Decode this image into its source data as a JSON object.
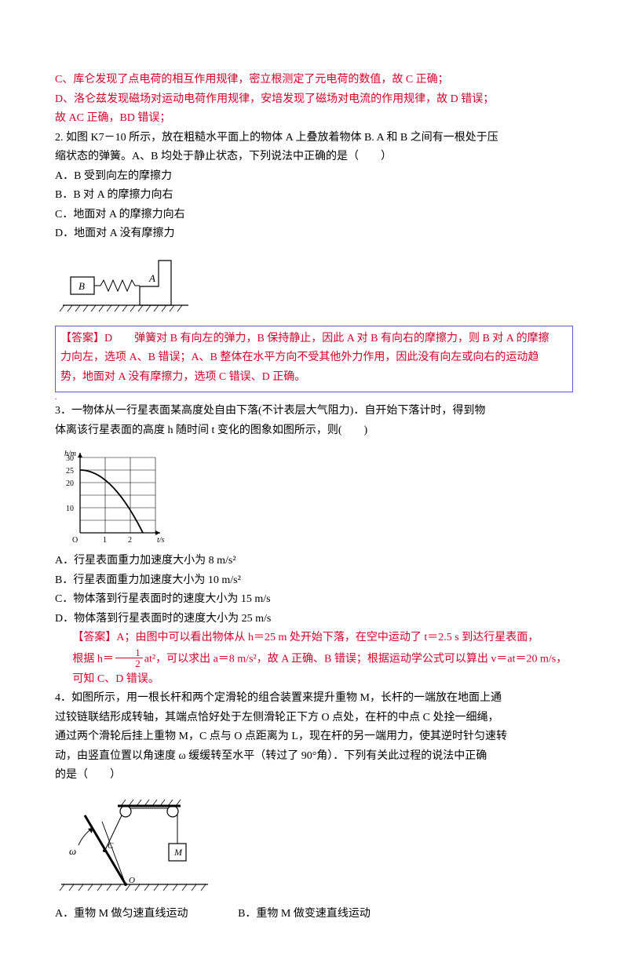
{
  "q1": {
    "lineC": "C、库仑发现了点电荷的相互作用规律，密立根测定了元电荷的数值，故 C 正确；",
    "lineD": "D、洛仑兹发现磁场对运动电荷作用规律，安培发现了磁场对电流的作用规律，故 D 错误；",
    "summary": "故 AC 正确，BD 错误；"
  },
  "q2": {
    "stem1": "2. 如图 K7－10 所示，放在粗糙水平面上的物体 A 上叠放着物体 B. A 和 B 之间有一根处于压",
    "stem2": "缩状态的弹簧。A、B 均处于静止状态，下列说法中正确的是（　　）",
    "optA": "A．B 受到向左的摩擦力",
    "optB": "B．B 对 A 的摩擦力向右",
    "optC": "C．地面对 A 的摩擦力向右",
    "optD": "D．地面对 A 没有摩擦力",
    "labelB": "B",
    "labelA": "A",
    "ans1": "【答案】D　　弹簧对 B 有向左的弹力，B 保持静止，因此 A 对 B 有向右的摩擦力，则 B 对 A 的摩擦",
    "ans2": "力向左，选项 A、B 错误；A、B 整体在水平方向不受其他外力作用，因此没有向左或向右的运动趋",
    "ans3": "势，地面对 A 没有摩擦力，选项 C 错误、D 正确。"
  },
  "q3": {
    "stem1": "3．一物体从一行星表面某高度处自由下落(不计表层大气阻力)．自开始下落计时，得到物",
    "stem2": "体离该行星表面的高度 h 随时间 t 变化的图象如图所示，则(　　)",
    "yAxis": "h/m",
    "xAxis": "t/s",
    "ymax": 30,
    "ystep": 5,
    "xmax": 3,
    "xstep": 1,
    "startH": 25,
    "endT": 2.5,
    "optA": "A．行星表面重力加速度大小为 8 m/s²",
    "optB": "B．行星表面重力加速度大小为 10 m/s²",
    "optC": "C．物体落到行星表面时的速度大小为 15 m/s",
    "optD": "D．物体落到行星表面时的速度大小为 25 m/s",
    "ans1a": "【答案】A；由图中可以看出物体从 h＝25 m 处开始下落，在空中运动了 t＝2.5 s 到达行星表面，",
    "ans2a": "根据 h＝",
    "ans2b": "at²，可以求出 a＝8 m/s²，故 A 正确、B 错误；根据运动学公式可以算出 v＝at＝20 m/s，",
    "frac_num": "1",
    "frac_den": "2",
    "ans3": "可知 C、D 错误。"
  },
  "q4": {
    "stem1": "4．如图所示，用一根长杆和两个定滑轮的组合装置来提升重物 M，长杆的一端放在地面上通",
    "stem2": "过铰链联结形成转轴，其端点恰好处于左侧滑轮正下方 O 点处，在杆的中点 C 处拴一细绳，",
    "stem3": "通过两个滑轮后挂上重物 M，C 点与 O 点距离为 L，现在杆的另一端用力，使其逆时针匀速转",
    "stem4": "动，由竖直位置以角速度 ω 缓缓转至水平（转过了 90°角）．下列有关此过程的说法中正确",
    "stem5": "的是（　　）",
    "labelM": "M",
    "labelC": "C",
    "labelO": "O",
    "labelOmega": "ω",
    "optA": "A．重物 M 做匀速直线运动",
    "optB": "B．重物 M 做变速直线运动"
  }
}
